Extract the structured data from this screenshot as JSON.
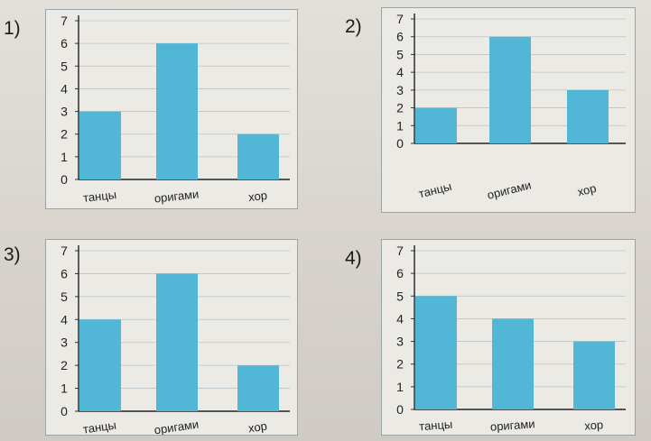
{
  "chart_data": [
    {
      "type": "bar",
      "label": "1)",
      "categories": [
        "танцы",
        "оригами",
        "хор"
      ],
      "values": [
        3,
        6,
        2
      ],
      "yticks": [
        "0",
        "1",
        "2",
        "3",
        "4",
        "5",
        "6",
        "7"
      ],
      "ylim": [
        0,
        7
      ],
      "bar_color": "#52b6d6"
    },
    {
      "type": "bar",
      "label": "2)",
      "categories": [
        "танцы",
        "оригами",
        "хор"
      ],
      "values": [
        2,
        6,
        3
      ],
      "yticks": [
        "0",
        "1",
        "2",
        "3",
        "4",
        "5",
        "6",
        "7"
      ],
      "ylim": [
        0,
        7
      ],
      "bar_color": "#52b6d6"
    },
    {
      "type": "bar",
      "label": "3)",
      "categories": [
        "танцы",
        "оригами",
        "хор"
      ],
      "values": [
        4,
        6,
        2
      ],
      "yticks": [
        "0",
        "1",
        "2",
        "3",
        "4",
        "5",
        "6",
        "7"
      ],
      "ylim": [
        0,
        7
      ],
      "bar_color": "#52b6d6"
    },
    {
      "type": "bar",
      "label": "4)",
      "categories": [
        "танцы",
        "оригами",
        "хор"
      ],
      "values": [
        5,
        4,
        3
      ],
      "yticks": [
        "0",
        "1",
        "2",
        "3",
        "4",
        "5",
        "6",
        "7"
      ],
      "ylim": [
        0,
        7
      ],
      "bar_color": "#52b6d6"
    }
  ]
}
